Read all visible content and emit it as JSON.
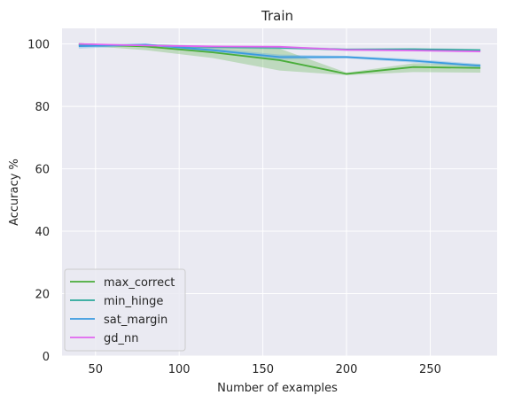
{
  "chart_data": {
    "type": "line",
    "title": "Train",
    "xlabel": "Number of examples",
    "ylabel": "Accuracy %",
    "xlim": [
      30,
      290
    ],
    "ylim": [
      0,
      105
    ],
    "xticks": [
      50,
      100,
      150,
      200,
      250
    ],
    "yticks": [
      0,
      20,
      40,
      60,
      80,
      100
    ],
    "grid": true,
    "legend_position": "lower-left",
    "series": [
      {
        "name": "max_correct",
        "color": "#4aad3a",
        "x": [
          40,
          80,
          120,
          160,
          200,
          240,
          280
        ],
        "y": [
          100,
          99.2,
          97.3,
          94.8,
          90.4,
          92.6,
          92.3
        ],
        "band_lower": [
          99.6,
          98.0,
          95.5,
          91.5,
          90.0,
          91.0,
          90.8
        ],
        "band_upper": [
          100,
          99.8,
          99.0,
          98.5,
          90.8,
          93.8,
          93.5
        ]
      },
      {
        "name": "min_hinge",
        "color": "#2aa89a",
        "x": [
          40,
          80,
          120,
          160,
          200,
          240,
          280
        ],
        "y": [
          99.6,
          99.6,
          99.0,
          98.8,
          98.2,
          98.3,
          98.0
        ],
        "band_lower": [
          99.0,
          99.2,
          98.6,
          98.3,
          97.8,
          97.9,
          97.6
        ],
        "band_upper": [
          100,
          100,
          99.4,
          99.2,
          98.6,
          98.7,
          98.4
        ]
      },
      {
        "name": "sat_margin",
        "color": "#3a9ae0",
        "x": [
          40,
          80,
          120,
          160,
          200,
          240,
          280
        ],
        "y": [
          99.3,
          99.8,
          98.0,
          95.8,
          95.8,
          94.6,
          93.0
        ],
        "band_lower": [
          98.5,
          99.4,
          97.4,
          95.0,
          95.4,
          94.0,
          92.4
        ],
        "band_upper": [
          100,
          100,
          98.6,
          96.6,
          96.2,
          95.2,
          93.6
        ]
      },
      {
        "name": "gd_nn",
        "color": "#e066f0",
        "x": [
          40,
          80,
          120,
          160,
          200,
          240,
          280
        ],
        "y": [
          100,
          99.5,
          99.2,
          99.1,
          98.1,
          97.9,
          97.6
        ],
        "band_lower": [
          99.8,
          99.2,
          98.9,
          98.8,
          97.8,
          97.6,
          97.3
        ],
        "band_upper": [
          100,
          99.8,
          99.5,
          99.4,
          98.4,
          98.2,
          97.9
        ]
      }
    ]
  }
}
